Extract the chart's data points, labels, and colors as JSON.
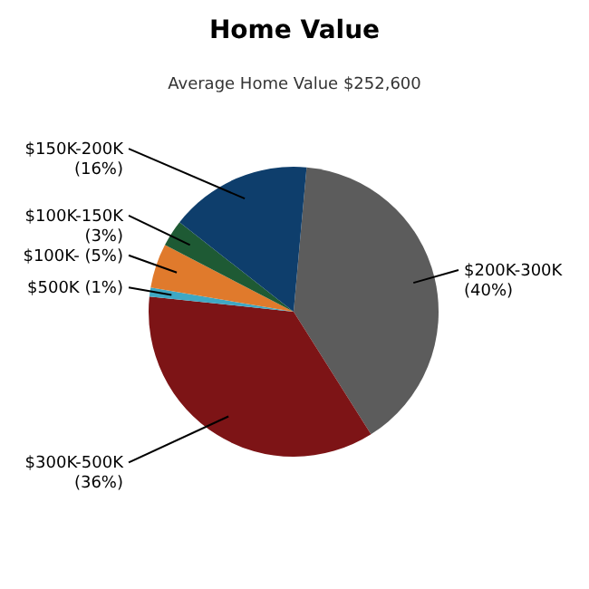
{
  "chart_data": {
    "type": "pie",
    "title": "Home Value",
    "subtitle": "Average Home Value  $252,600",
    "categories": [
      "$200K-300K",
      "$300K-500K",
      "$500K",
      "$100K-",
      "$100K-150K",
      "$150K-200K"
    ],
    "values": [
      40,
      36,
      1,
      5,
      3,
      16
    ],
    "value_labels": [
      "(40%)",
      "(36%)",
      "(1%)",
      "(5%)",
      "(3%)",
      "(16%)"
    ],
    "colors": [
      "#5c5c5c",
      "#7d1416",
      "#3fa8c4",
      "#e07a2c",
      "#1e5a34",
      "#0e3e6c"
    ]
  }
}
